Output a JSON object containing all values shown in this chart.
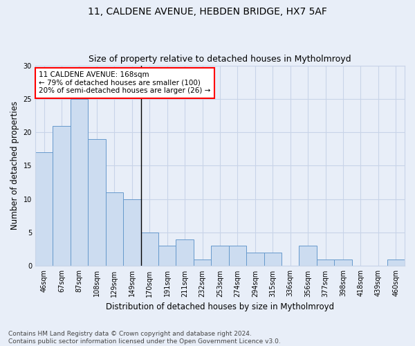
{
  "title1": "11, CALDENE AVENUE, HEBDEN BRIDGE, HX7 5AF",
  "title2": "Size of property relative to detached houses in Mytholmroyd",
  "xlabel": "Distribution of detached houses by size in Mytholmroyd",
  "ylabel": "Number of detached properties",
  "categories": [
    "46sqm",
    "67sqm",
    "87sqm",
    "108sqm",
    "129sqm",
    "149sqm",
    "170sqm",
    "191sqm",
    "211sqm",
    "232sqm",
    "253sqm",
    "274sqm",
    "294sqm",
    "315sqm",
    "336sqm",
    "356sqm",
    "377sqm",
    "398sqm",
    "418sqm",
    "439sqm",
    "460sqm"
  ],
  "values": [
    17,
    21,
    25,
    19,
    11,
    10,
    5,
    3,
    4,
    1,
    3,
    3,
    2,
    2,
    0,
    3,
    1,
    1,
    0,
    0,
    1
  ],
  "bar_color": "#ccdcf0",
  "bar_edge_color": "#6699cc",
  "annotation_text": "11 CALDENE AVENUE: 168sqm\n← 79% of detached houses are smaller (100)\n20% of semi-detached houses are larger (26) →",
  "annotation_box_color": "white",
  "annotation_box_edge_color": "red",
  "vline_color": "black",
  "vline_x": 5.5,
  "ylim": [
    0,
    30
  ],
  "yticks": [
    0,
    5,
    10,
    15,
    20,
    25,
    30
  ],
  "bg_color": "#e8eef8",
  "plot_bg_color": "#e8eef8",
  "grid_color": "#c8d4e8",
  "footer": "Contains HM Land Registry data © Crown copyright and database right 2024.\nContains public sector information licensed under the Open Government Licence v3.0.",
  "title1_fontsize": 10,
  "title2_fontsize": 9,
  "xlabel_fontsize": 8.5,
  "ylabel_fontsize": 8.5,
  "tick_fontsize": 7,
  "annotation_fontsize": 7.5,
  "footer_fontsize": 6.5
}
